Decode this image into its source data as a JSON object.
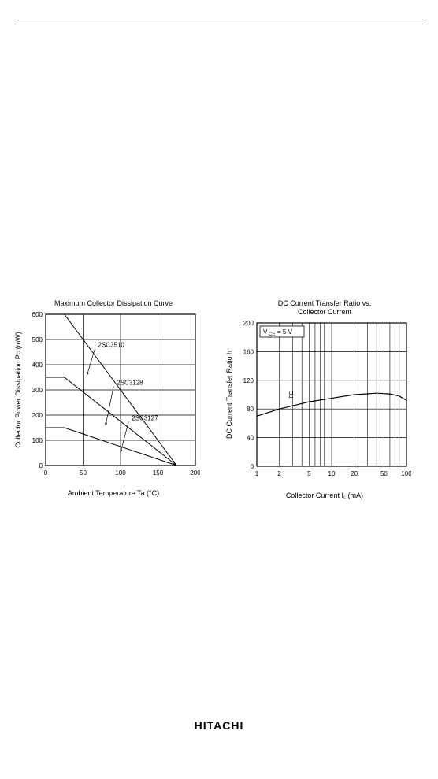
{
  "chart_left": {
    "type": "line",
    "title": "Maximum Collector Dissipation Curve",
    "xlabel": "Ambient Temperature  Ta (°C)",
    "ylabel": "Collector Power Dissipation  Pc (mW)",
    "title_fontsize": 9,
    "label_fontsize": 9,
    "tick_fontsize": 8,
    "xlim": [
      0,
      200
    ],
    "ylim": [
      0,
      600
    ],
    "xtick_step": 50,
    "ytick_step": 100,
    "xticks": [
      0,
      50,
      100,
      150,
      200
    ],
    "yticks": [
      0,
      100,
      200,
      300,
      400,
      500,
      600
    ],
    "background_color": "#ffffff",
    "grid_color": "#000000",
    "line_color": "#000000",
    "line_width": 1,
    "series": [
      {
        "name": "2SC3510",
        "x": [
          0,
          25,
          175
        ],
        "y": [
          600,
          600,
          0
        ],
        "label_at": {
          "x": 70,
          "y": 470
        }
      },
      {
        "name": "2SC3128",
        "x": [
          0,
          25,
          175
        ],
        "y": [
          350,
          350,
          0
        ],
        "label_at": {
          "x": 95,
          "y": 320
        }
      },
      {
        "name": "2SC3127",
        "x": [
          0,
          25,
          175
        ],
        "y": [
          150,
          150,
          0
        ],
        "label_at": {
          "x": 115,
          "y": 180
        }
      }
    ]
  },
  "chart_right": {
    "type": "line",
    "title": "DC Current Transfer Ratio vs.\nCollector Current",
    "xlabel": "Collector Current  I꜀ (mA)",
    "ylabel": "DC Current Transfer Ratio  h_FE",
    "condition_box": "V_CE = 5 V",
    "title_fontsize": 9,
    "label_fontsize": 9,
    "tick_fontsize": 8,
    "xlim": [
      1,
      100
    ],
    "ylim": [
      0,
      200
    ],
    "x_scale": "log",
    "y_scale": "linear",
    "xticks": [
      1,
      2,
      5,
      10,
      20,
      50,
      100
    ],
    "yticks": [
      0,
      40,
      80,
      120,
      160,
      200
    ],
    "ytick_step": 40,
    "background_color": "#ffffff",
    "grid_color": "#000000",
    "line_color": "#000000",
    "line_width": 1,
    "series": [
      {
        "name": "hFE",
        "x": [
          1,
          2,
          5,
          10,
          20,
          40,
          60,
          80,
          100
        ],
        "y": [
          70,
          80,
          90,
          95,
          100,
          102,
          101,
          98,
          92
        ]
      }
    ]
  },
  "footer": {
    "brand": "HITACHI"
  }
}
